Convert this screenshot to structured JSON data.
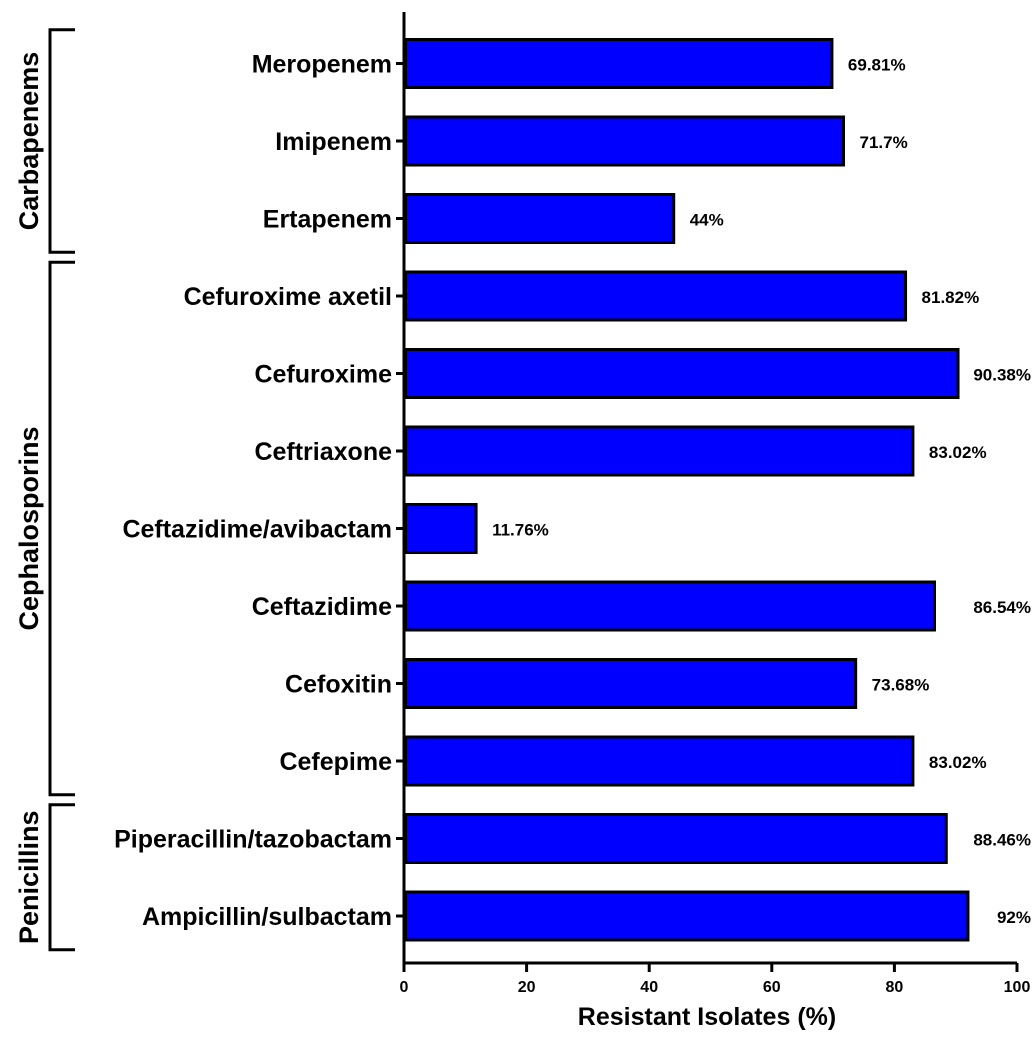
{
  "chart_data": {
    "type": "bar",
    "orientation": "horizontal",
    "categories": [
      "Meropenem",
      "Imipenem",
      "Ertapenem",
      "Cefuroxime axetil",
      "Cefuroxime",
      "Ceftriaxone",
      "Ceftazidime/avibactam",
      "Ceftazidime",
      "Cefoxitin",
      "Cefepime",
      "Piperacillin/tazobactam",
      "Ampicillin/sulbactam"
    ],
    "values": [
      69.81,
      71.7,
      44,
      81.82,
      90.38,
      83.02,
      11.76,
      86.54,
      73.68,
      83.02,
      88.46,
      92
    ],
    "value_labels": [
      "69.81%",
      "71.7%",
      "44%",
      "81.82%",
      "90.38%",
      "83.02%",
      "11.76%",
      "86.54%",
      "73.68%",
      "83.02%",
      "88.46%",
      "92%"
    ],
    "groups": [
      {
        "name": "Carbapenems",
        "start": 0,
        "end": 2
      },
      {
        "name": "Cephalosporins",
        "start": 3,
        "end": 9
      },
      {
        "name": "Penicillins",
        "start": 10,
        "end": 11
      }
    ],
    "xlabel": "Resistant Isolates (%)",
    "ylabel": "",
    "title": "",
    "xlim": [
      0,
      100
    ],
    "xticks": [
      0,
      20,
      40,
      60,
      80,
      100
    ],
    "bar_color": "#0000ff",
    "bar_edge_color": "#000000",
    "grid": false,
    "legend": "none"
  }
}
